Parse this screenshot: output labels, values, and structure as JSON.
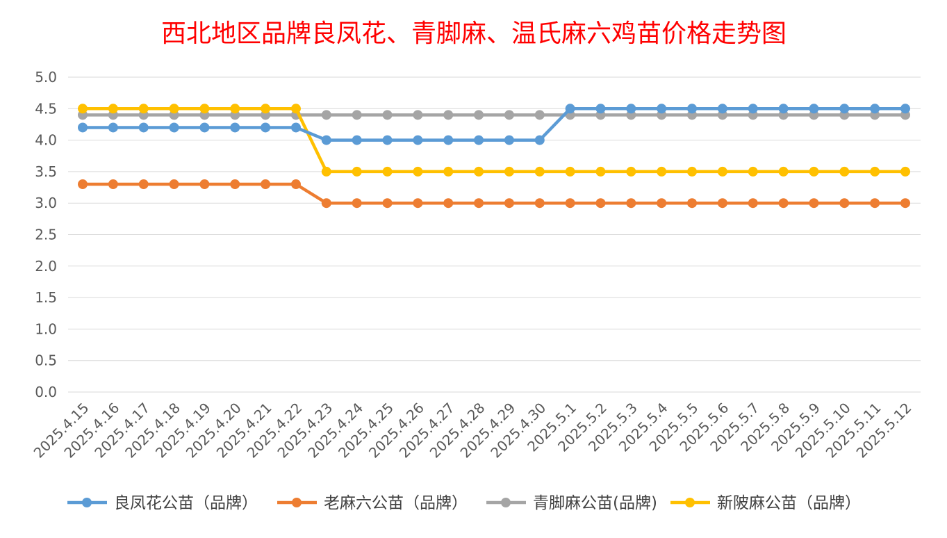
{
  "chart_data": {
    "type": "line",
    "title": "西北地区品牌良凤花、青脚麻、温氏麻六鸡苗价格走势图",
    "xlabel": "",
    "ylabel": "",
    "ylim": [
      0,
      5
    ],
    "yticks": [
      "0.0",
      "0.5",
      "1.0",
      "1.5",
      "2.0",
      "2.5",
      "3.0",
      "3.5",
      "4.0",
      "4.5",
      "5.0"
    ],
    "grid": true,
    "legend_position": "bottom",
    "categories": [
      "2025.4.15",
      "2025.4.16",
      "2025.4.17",
      "2025.4.18",
      "2025.4.19",
      "2025.4.20",
      "2025.4.21",
      "2025.4.22",
      "2025.4.23",
      "2025.4.24",
      "2025.4.25",
      "2025.4.26",
      "2025.4.27",
      "2025.4.28",
      "2025.4.29",
      "2025.4.30",
      "2025.5.1",
      "2025.5.2",
      "2025.5.3",
      "2025.5.4",
      "2025.5.5",
      "2025.5.6",
      "2025.5.7",
      "2025.5.8",
      "2025.5.9",
      "2025.5.10",
      "2025.5.11",
      "2025.5.12"
    ],
    "series": [
      {
        "name": "良凤花公苗（品牌）",
        "color": "#5B9BD5",
        "values": [
          4.2,
          4.2,
          4.2,
          4.2,
          4.2,
          4.2,
          4.2,
          4.2,
          4.0,
          4.0,
          4.0,
          4.0,
          4.0,
          4.0,
          4.0,
          4.0,
          4.5,
          4.5,
          4.5,
          4.5,
          4.5,
          4.5,
          4.5,
          4.5,
          4.5,
          4.5,
          4.5,
          4.5
        ]
      },
      {
        "name": "老麻六公苗（品牌）",
        "color": "#ED7D31",
        "values": [
          3.3,
          3.3,
          3.3,
          3.3,
          3.3,
          3.3,
          3.3,
          3.3,
          3.0,
          3.0,
          3.0,
          3.0,
          3.0,
          3.0,
          3.0,
          3.0,
          3.0,
          3.0,
          3.0,
          3.0,
          3.0,
          3.0,
          3.0,
          3.0,
          3.0,
          3.0,
          3.0,
          3.0
        ]
      },
      {
        "name": "青脚麻公苗(品牌)",
        "color": "#A5A5A5",
        "values": [
          4.4,
          4.4,
          4.4,
          4.4,
          4.4,
          4.4,
          4.4,
          4.4,
          4.4,
          4.4,
          4.4,
          4.4,
          4.4,
          4.4,
          4.4,
          4.4,
          4.4,
          4.4,
          4.4,
          4.4,
          4.4,
          4.4,
          4.4,
          4.4,
          4.4,
          4.4,
          4.4,
          4.4
        ]
      },
      {
        "name": "新陂麻公苗（品牌）",
        "color": "#FFC000",
        "values": [
          4.5,
          4.5,
          4.5,
          4.5,
          4.5,
          4.5,
          4.5,
          4.5,
          3.5,
          3.5,
          3.5,
          3.5,
          3.5,
          3.5,
          3.5,
          3.5,
          3.5,
          3.5,
          3.5,
          3.5,
          3.5,
          3.5,
          3.5,
          3.5,
          3.5,
          3.5,
          3.5,
          3.5
        ]
      }
    ]
  },
  "colors": {
    "title": "#FF0000",
    "grid": "#D9D9D9",
    "axis_text": "#595959",
    "legend_text": "#404040"
  }
}
